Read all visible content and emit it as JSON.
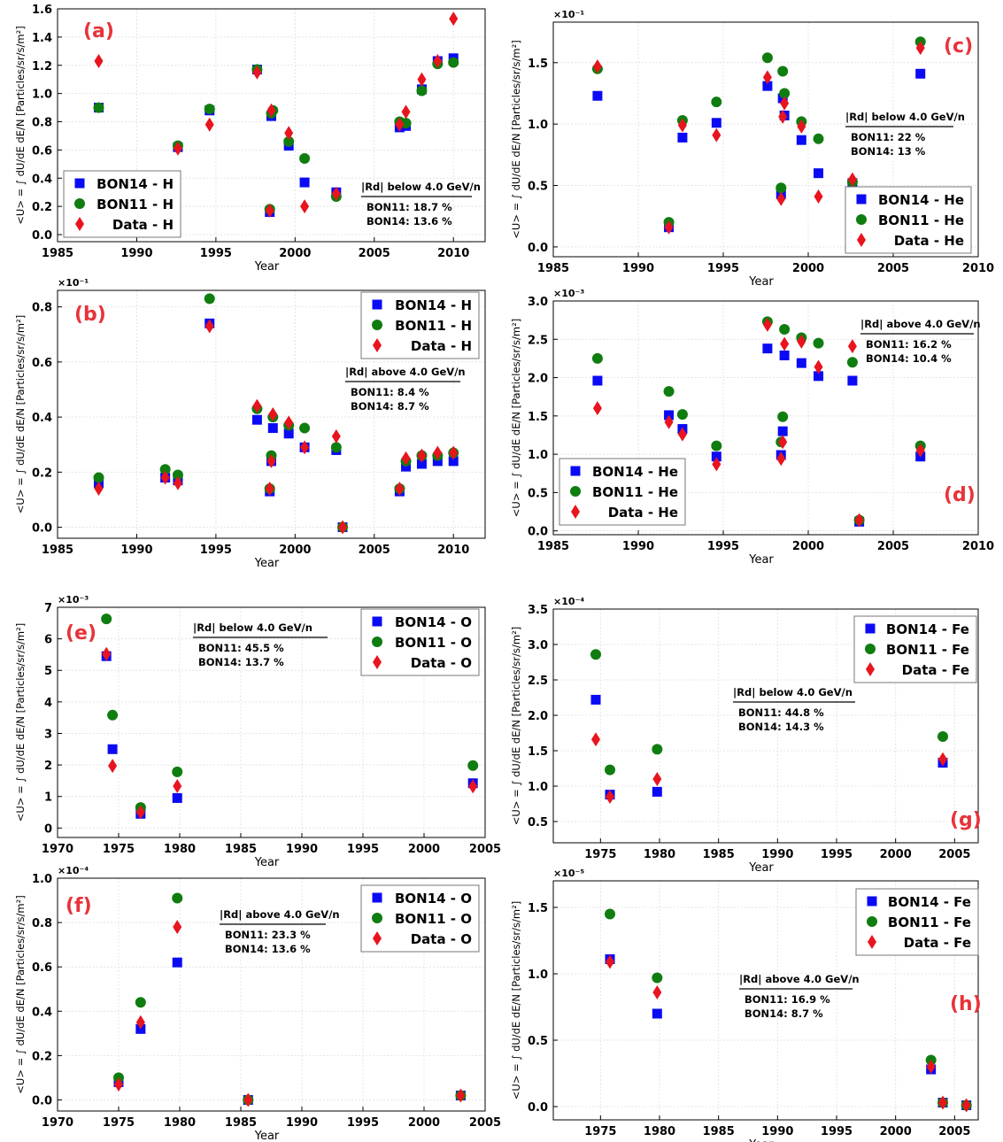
{
  "figure": {
    "xlabel": "Year",
    "ylabel": "<U> = ∫ dU/dE dE/N  [Particles/sr/s/m²]"
  },
  "colors": {
    "bon14": "#0a0af5",
    "bon11": "#0f7d0f",
    "data": "#e8141e",
    "label": "#e8333a",
    "grid": "#e4e4e4"
  },
  "chart_data": [
    {
      "type": "scatter",
      "panel_label": "(a)",
      "xlim": [
        1985,
        2012
      ],
      "xticks": [
        1985,
        1990,
        1995,
        2000,
        2005,
        2010
      ],
      "ylim": [
        -0.05,
        1.6
      ],
      "yticks": [
        0.0,
        0.2,
        0.4,
        0.6,
        0.8,
        1.0,
        1.2,
        1.4,
        1.6
      ],
      "ytick_decimals": 1,
      "multiplier": "",
      "legend": {
        "position": "bottom-left",
        "entries": [
          "BON14 - H",
          "BON11 - H",
          "Data - H"
        ]
      },
      "annotation": {
        "title": "|Rd| below 4.0 GeV/n",
        "lines": [
          "BON11:   18.7 %",
          "BON14:   13.6 %"
        ],
        "position": "bottom-right"
      },
      "series": [
        {
          "name": "BON14 - H",
          "marker": "square",
          "x": [
            1987.6,
            1992.6,
            1994.6,
            1997.6,
            1998.4,
            1998.5,
            1999.6,
            2000.6,
            2002.6,
            2006.6,
            2007.0,
            2008.0,
            2009.0,
            2010.0
          ],
          "y": [
            0.9,
            0.62,
            0.88,
            1.17,
            0.16,
            0.84,
            0.63,
            0.37,
            0.3,
            0.76,
            0.77,
            1.03,
            1.23,
            1.25
          ]
        },
        {
          "name": "BON11 - H",
          "marker": "circle",
          "x": [
            1987.6,
            1992.6,
            1994.6,
            1997.6,
            1998.4,
            1998.5,
            1998.6,
            1999.6,
            2000.6,
            2002.6,
            2006.6,
            2007.0,
            2008.0,
            2009.0,
            2010.0
          ],
          "y": [
            0.9,
            0.63,
            0.89,
            1.17,
            0.18,
            0.86,
            0.88,
            0.66,
            0.54,
            0.27,
            0.8,
            0.79,
            1.02,
            1.21,
            1.22
          ]
        },
        {
          "name": "Data - H",
          "marker": "diamond",
          "x": [
            1987.6,
            1992.6,
            1994.6,
            1997.6,
            1998.4,
            1998.5,
            1999.6,
            2000.6,
            2002.6,
            2006.6,
            2007.0,
            2008.0,
            2009.0,
            2010.0
          ],
          "y": [
            1.23,
            0.61,
            0.78,
            1.15,
            0.17,
            0.88,
            0.72,
            0.2,
            0.29,
            0.78,
            0.87,
            1.1,
            1.23,
            1.53
          ]
        }
      ]
    },
    {
      "type": "scatter",
      "panel_label": "(c)",
      "xlim": [
        1985,
        2010
      ],
      "xticks": [
        1985,
        1990,
        1995,
        2000,
        2005,
        2010
      ],
      "ylim": [
        -0.08,
        1.83
      ],
      "yticks": [
        0.0,
        0.5,
        1.0,
        1.5
      ],
      "ytick_decimals": 1,
      "multiplier": "×10⁻¹",
      "legend": {
        "position": "bottom-right",
        "entries": [
          "BON14 - He",
          "BON11 - He",
          "Data - He"
        ]
      },
      "annotation": {
        "title": "|Rd| below 4.0 GeV/n",
        "lines": [
          "BON11:    22 %",
          "BON14:    13 %"
        ],
        "position": "right"
      },
      "series": [
        {
          "name": "BON14 - He",
          "marker": "square",
          "x": [
            1987.6,
            1991.8,
            1992.6,
            1994.6,
            1997.6,
            1998.4,
            1998.5,
            1998.6,
            1999.6,
            2000.6,
            2002.6,
            2006.6
          ],
          "y": [
            1.23,
            0.16,
            0.89,
            1.01,
            1.31,
            0.43,
            1.21,
            1.07,
            0.87,
            0.6,
            0.52,
            1.41
          ]
        },
        {
          "name": "BON11 - He",
          "marker": "circle",
          "x": [
            1987.6,
            1991.8,
            1992.6,
            1994.6,
            1997.6,
            1998.4,
            1998.5,
            1998.6,
            1999.6,
            2000.6,
            2002.6,
            2006.6
          ],
          "y": [
            1.45,
            0.2,
            1.03,
            1.18,
            1.54,
            0.48,
            1.43,
            1.25,
            1.02,
            0.88,
            0.53,
            1.67
          ]
        },
        {
          "name": "Data - He",
          "marker": "diamond",
          "x": [
            1987.6,
            1991.8,
            1992.6,
            1994.6,
            1997.6,
            1998.4,
            1998.5,
            1998.6,
            1999.6,
            2000.6,
            2002.6,
            2006.6
          ],
          "y": [
            1.47,
            0.16,
            0.99,
            0.91,
            1.38,
            0.39,
            1.06,
            1.17,
            0.98,
            0.41,
            0.55,
            1.62
          ]
        }
      ]
    },
    {
      "type": "scatter",
      "panel_label": "(b)",
      "xlim": [
        1985,
        2012
      ],
      "xticks": [
        1985,
        1990,
        1995,
        2000,
        2005,
        2010
      ],
      "ylim": [
        -0.04,
        0.86
      ],
      "yticks": [
        0.0,
        0.2,
        0.4,
        0.6,
        0.8
      ],
      "ytick_decimals": 1,
      "multiplier": "×10⁻¹",
      "legend": {
        "position": "top-right",
        "entries": [
          "BON14 - H",
          "BON11 - H",
          "Data - H"
        ]
      },
      "annotation": {
        "title": "|Rd| above 4.0 GeV/n",
        "lines": [
          "BON11:   8.4 %",
          "BON14:   8.7 %"
        ],
        "position": "right"
      },
      "series": [
        {
          "name": "BON14 - H",
          "marker": "square",
          "x": [
            1987.6,
            1991.8,
            1992.6,
            1994.6,
            1997.6,
            1998.4,
            1998.5,
            1998.6,
            1999.6,
            2000.6,
            2002.6,
            2003.0,
            2006.6,
            2007.0,
            2008.0,
            2009.0,
            2010.0
          ],
          "y": [
            0.16,
            0.18,
            0.17,
            0.74,
            0.39,
            0.13,
            0.24,
            0.36,
            0.34,
            0.29,
            0.28,
            0.0,
            0.13,
            0.22,
            0.23,
            0.24,
            0.24
          ]
        },
        {
          "name": "BON11 - H",
          "marker": "circle",
          "x": [
            1987.6,
            1991.8,
            1992.6,
            1994.6,
            1997.6,
            1998.4,
            1998.5,
            1998.6,
            1999.6,
            2000.6,
            2002.6,
            2003.0,
            2006.6,
            2007.0,
            2008.0,
            2009.0,
            2010.0
          ],
          "y": [
            0.18,
            0.21,
            0.19,
            0.83,
            0.43,
            0.14,
            0.26,
            0.4,
            0.37,
            0.36,
            0.29,
            0.0,
            0.14,
            0.24,
            0.26,
            0.26,
            0.27
          ]
        },
        {
          "name": "Data - H",
          "marker": "diamond",
          "x": [
            1987.6,
            1991.8,
            1992.6,
            1994.6,
            1997.6,
            1998.4,
            1998.5,
            1998.6,
            1999.6,
            2000.6,
            2002.6,
            2003.0,
            2006.6,
            2007.0,
            2008.0,
            2009.0,
            2010.0
          ],
          "y": [
            0.14,
            0.18,
            0.16,
            0.73,
            0.44,
            0.14,
            0.24,
            0.41,
            0.38,
            0.29,
            0.33,
            0.0,
            0.14,
            0.25,
            0.26,
            0.27,
            0.27
          ]
        }
      ]
    },
    {
      "type": "scatter",
      "panel_label": "(d)",
      "xlim": [
        1985,
        2010
      ],
      "xticks": [
        1985,
        1990,
        1995,
        2000,
        2005,
        2010
      ],
      "ylim": [
        -0.05,
        3.0
      ],
      "yticks": [
        0.0,
        0.5,
        1.0,
        1.5,
        2.0,
        2.5,
        3.0
      ],
      "ytick_decimals": 1,
      "multiplier": "×10⁻³",
      "legend": {
        "position": "bottom-left",
        "entries": [
          "BON14 - He",
          "BON11 - He",
          "Data - He"
        ]
      },
      "annotation": {
        "title": "|Rd| above 4.0 GeV/n",
        "lines": [
          "BON11:   16.2 %",
          "BON14:   10.4 %"
        ],
        "position": "top-right"
      },
      "series": [
        {
          "name": "BON14 - He",
          "marker": "square",
          "x": [
            1987.6,
            1991.8,
            1992.6,
            1994.6,
            1997.6,
            1998.4,
            1998.5,
            1998.6,
            1999.6,
            2000.6,
            2002.6,
            2003.0,
            2006.6
          ],
          "y": [
            1.96,
            1.51,
            1.33,
            0.97,
            2.38,
            0.99,
            1.3,
            2.29,
            2.19,
            2.02,
            1.96,
            0.12,
            0.97
          ]
        },
        {
          "name": "BON11 - He",
          "marker": "circle",
          "x": [
            1987.6,
            1991.8,
            1992.6,
            1994.6,
            1997.6,
            1998.4,
            1998.5,
            1998.6,
            1999.6,
            2000.6,
            2002.6,
            2003.0,
            2006.6
          ],
          "y": [
            2.25,
            1.82,
            1.52,
            1.11,
            2.73,
            1.16,
            1.49,
            2.63,
            2.52,
            2.45,
            2.2,
            0.14,
            1.11
          ]
        },
        {
          "name": "Data - He",
          "marker": "diamond",
          "x": [
            1987.6,
            1991.8,
            1992.6,
            1994.6,
            1997.6,
            1998.4,
            1998.5,
            1998.6,
            1999.6,
            2000.6,
            2002.6,
            2003.0,
            2006.6
          ],
          "y": [
            1.6,
            1.42,
            1.26,
            0.87,
            2.69,
            0.94,
            1.16,
            2.44,
            2.47,
            2.14,
            2.41,
            0.14,
            1.05
          ]
        }
      ]
    },
    {
      "type": "scatter",
      "panel_label": "(e)",
      "xlim": [
        1970,
        2005
      ],
      "xticks": [
        1970,
        1975,
        1980,
        1985,
        1990,
        1995,
        2000,
        2005
      ],
      "ylim": [
        -0.3,
        7.0
      ],
      "yticks": [
        0,
        1,
        2,
        3,
        4,
        5,
        6,
        7
      ],
      "ytick_decimals": 0,
      "multiplier": "×10⁻³",
      "legend": {
        "position": "top-right",
        "entries": [
          "BON14 - O",
          "BON11 - O",
          "Data - O"
        ]
      },
      "annotation": {
        "title": "|Rd| below 4.0 GeV/n",
        "lines": [
          "BON11:   45.5 %",
          "BON14:   13.7 %"
        ],
        "position": "top-center"
      },
      "series": [
        {
          "name": "BON14 - O",
          "marker": "square",
          "x": [
            1974.0,
            1974.5,
            1976.8,
            1979.8,
            2004.0
          ],
          "y": [
            5.45,
            2.5,
            0.45,
            0.95,
            1.42
          ]
        },
        {
          "name": "BON11 - O",
          "marker": "circle",
          "x": [
            1974.0,
            1974.5,
            1976.8,
            1979.8,
            2004.0
          ],
          "y": [
            6.63,
            3.58,
            0.65,
            1.78,
            1.98
          ]
        },
        {
          "name": "Data - O",
          "marker": "diamond",
          "x": [
            1974.0,
            1974.5,
            1976.8,
            1979.8,
            2004.0
          ],
          "y": [
            5.52,
            1.97,
            0.5,
            1.33,
            1.32
          ]
        }
      ]
    },
    {
      "type": "scatter",
      "panel_label": "(g)",
      "xlim": [
        1971,
        2007
      ],
      "xticks": [
        1975,
        1980,
        1985,
        1990,
        1995,
        2000,
        2005
      ],
      "ylim": [
        0.2,
        3.5
      ],
      "yticks": [
        0.5,
        1.0,
        1.5,
        2.0,
        2.5,
        3.0,
        3.5
      ],
      "ytick_decimals": 1,
      "multiplier": "×10⁻⁴",
      "legend": {
        "position": "top-right",
        "entries": [
          "BON14 - Fe",
          "BON11 - Fe",
          "Data - Fe"
        ]
      },
      "annotation": {
        "title": "|Rd| below 4.0 GeV/n",
        "lines": [
          "BON11:  44.8 %",
          "BON14:  14.3 %"
        ],
        "position": "center"
      },
      "series": [
        {
          "name": "BON14 - Fe",
          "marker": "square",
          "x": [
            1974.6,
            1975.8,
            1979.8,
            2004.0
          ],
          "y": [
            2.22,
            0.88,
            0.92,
            1.33
          ]
        },
        {
          "name": "BON11 - Fe",
          "marker": "circle",
          "x": [
            1974.6,
            1975.8,
            1979.8,
            2004.0
          ],
          "y": [
            2.86,
            1.23,
            1.52,
            1.7
          ]
        },
        {
          "name": "Data - Fe",
          "marker": "diamond",
          "x": [
            1974.6,
            1975.8,
            1979.8,
            2004.0
          ],
          "y": [
            1.66,
            0.85,
            1.1,
            1.38
          ]
        }
      ]
    },
    {
      "type": "scatter",
      "panel_label": "(f)",
      "xlim": [
        1970,
        2005
      ],
      "xticks": [
        1970,
        1975,
        1980,
        1985,
        1990,
        1995,
        2000,
        2005
      ],
      "ylim": [
        -0.05,
        1.0
      ],
      "yticks": [
        0.0,
        0.2,
        0.4,
        0.6,
        0.8,
        1.0
      ],
      "ytick_decimals": 1,
      "multiplier": "×10⁻⁴",
      "legend": {
        "position": "top-right",
        "entries": [
          "BON14 - O",
          "BON11 - O",
          "Data - O"
        ]
      },
      "annotation": {
        "title": "|Rd| above 4.0 GeV/n",
        "lines": [
          "BON11:  23.3 %",
          "BON14:  13.6 %"
        ],
        "position": "top-center"
      },
      "series": [
        {
          "name": "BON14 - O",
          "marker": "square",
          "x": [
            1975.0,
            1976.8,
            1979.8,
            1985.6,
            2003.0
          ],
          "y": [
            0.08,
            0.32,
            0.62,
            0.0,
            0.02
          ]
        },
        {
          "name": "BON11 - O",
          "marker": "circle",
          "x": [
            1975.0,
            1976.8,
            1979.8,
            1985.6,
            2003.0
          ],
          "y": [
            0.1,
            0.44,
            0.91,
            0.0,
            0.02
          ]
        },
        {
          "name": "Data - O",
          "marker": "diamond",
          "x": [
            1975.0,
            1976.8,
            1979.8,
            1985.6,
            2003.0
          ],
          "y": [
            0.07,
            0.35,
            0.78,
            0.0,
            0.02
          ]
        }
      ]
    },
    {
      "type": "scatter",
      "panel_label": "(h)",
      "xlim": [
        1971,
        2007
      ],
      "xticks": [
        1975,
        1980,
        1985,
        1990,
        1995,
        2000,
        2005
      ],
      "ylim": [
        -0.1,
        1.7
      ],
      "yticks": [
        0.0,
        0.5,
        1.0,
        1.5
      ],
      "ytick_decimals": 1,
      "multiplier": "×10⁻⁵",
      "legend": {
        "position": "top-right",
        "entries": [
          "BON14 - Fe",
          "BON11 - Fe",
          "Data - Fe"
        ]
      },
      "annotation": {
        "title": "|Rd| above 4.0 GeV/n",
        "lines": [
          "BON11:  16.9 %",
          "BON14:    8.7 %"
        ],
        "position": "center"
      },
      "series": [
        {
          "name": "BON14 - Fe",
          "marker": "square",
          "x": [
            1975.8,
            1979.8,
            2003.0,
            2004.0,
            2006.0
          ],
          "y": [
            1.11,
            0.7,
            0.28,
            0.03,
            0.01
          ]
        },
        {
          "name": "BON11 - Fe",
          "marker": "circle",
          "x": [
            1975.8,
            1979.8,
            2003.0,
            2004.0,
            2006.0
          ],
          "y": [
            1.45,
            0.97,
            0.35,
            0.03,
            0.01
          ]
        },
        {
          "name": "Data - Fe",
          "marker": "diamond",
          "x": [
            1975.8,
            1979.8,
            2003.0,
            2004.0,
            2006.0
          ],
          "y": [
            1.09,
            0.86,
            0.3,
            0.03,
            0.01
          ]
        }
      ]
    }
  ]
}
